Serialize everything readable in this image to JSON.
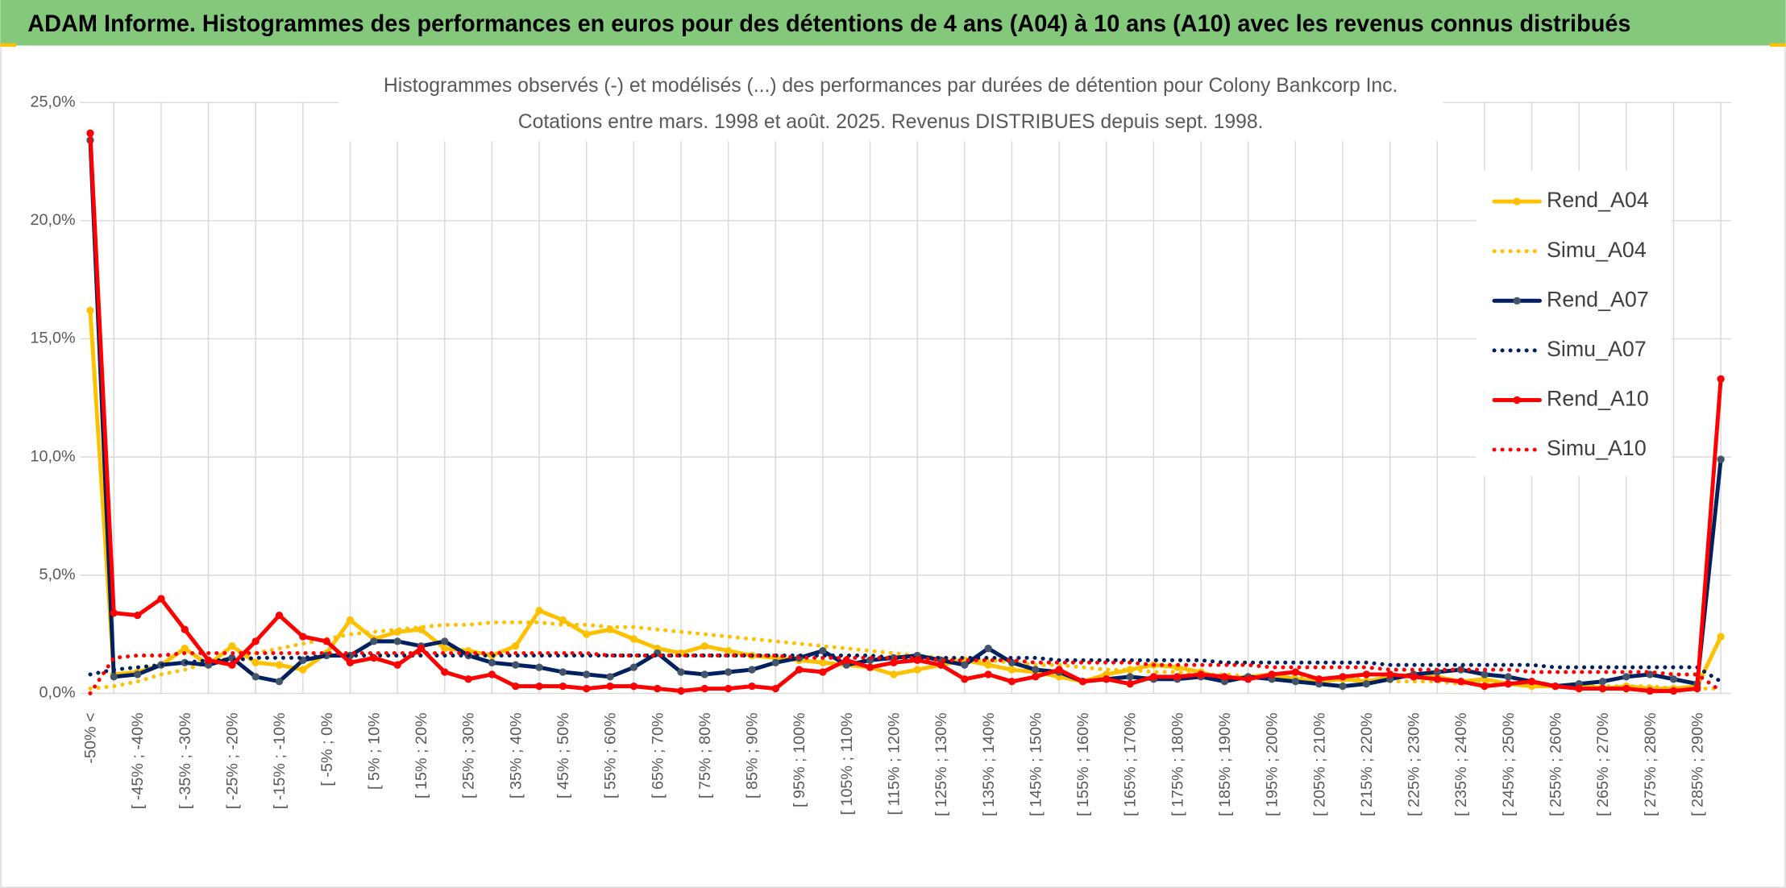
{
  "header": {
    "title": "ADAM Informe. Histogrammes des performances en euros pour des détentions de 4 ans (A04) à 10 ans (A10) avec les revenus connus distribués"
  },
  "chart_data": {
    "type": "line",
    "title": "Histogrammes observés (-) et modélisés (...) des performances par durées de détention pour Colony Bankcorp Inc.",
    "subtitle": "Cotations entre mars. 1998 et août. 2025. Revenus DISTRIBUES depuis sept. 1998.",
    "categories": [
      "-50% <",
      null,
      "[ -45% ; -40%",
      null,
      "[ -35% ; -30%",
      null,
      "[ -25% ; -20%",
      null,
      "[ -15% ; -10%",
      null,
      "[ -5% ; 0%",
      null,
      "[ 5% ; 10%",
      null,
      "[ 15% ; 20%",
      null,
      "[ 25% ; 30%",
      null,
      "[ 35% ; 40%",
      null,
      "[ 45% ; 50%",
      null,
      "[ 55% ; 60%",
      null,
      "[ 65% ; 70%",
      null,
      "[ 75% ; 80%",
      null,
      "[ 85% ; 90%",
      null,
      "[ 95% ; 100%",
      null,
      "[ 105% ; 110%",
      null,
      "[ 115% ; 120%",
      null,
      "[ 125% ; 130%",
      null,
      "[ 135% ; 140%",
      null,
      "[ 145% ; 150%",
      null,
      "[ 155% ; 160%",
      null,
      "[ 165% ; 170%",
      null,
      "[ 175% ; 180%",
      null,
      "[ 185% ; 190%",
      null,
      "[ 195% ; 200%",
      null,
      "[ 205% ; 210%",
      null,
      "[ 215% ; 220%",
      null,
      "[ 225% ; 230%",
      null,
      "[ 235% ; 240%",
      null,
      "[ 245% ; 250%",
      null,
      "[ 255% ; 260%",
      null,
      "[ 265% ; 270%",
      null,
      "[ 275% ; 280%",
      null,
      "[ 285% ; 290%",
      null
    ],
    "series": [
      {
        "name": "Rend_A04",
        "color": "#ffc000",
        "style": "solid",
        "markers": true,
        "values": [
          16.2,
          0.8,
          0.9,
          1.2,
          1.9,
          1.2,
          2.0,
          1.3,
          1.2,
          1.0,
          1.7,
          3.1,
          2.3,
          2.6,
          2.7,
          1.9,
          1.8,
          1.6,
          2.0,
          3.5,
          3.1,
          2.5,
          2.7,
          2.3,
          1.9,
          1.7,
          2.0,
          1.8,
          1.6,
          1.5,
          1.4,
          1.3,
          1.2,
          1.1,
          0.8,
          1.0,
          1.2,
          1.4,
          1.2,
          1.0,
          0.9,
          0.7,
          0.5,
          0.8,
          1.0,
          1.2,
          1.1,
          0.9,
          0.6,
          0.7,
          0.8,
          0.6,
          0.5,
          0.6,
          0.5,
          0.7,
          0.8,
          0.7,
          0.5,
          0.6,
          0.4,
          0.3,
          0.3,
          0.4,
          0.2,
          0.3,
          0.2,
          0.2,
          0.3,
          2.4
        ]
      },
      {
        "name": "Simu_A04",
        "color": "#ffc000",
        "style": "dotted",
        "markers": false,
        "values": [
          0.2,
          0.3,
          0.5,
          0.8,
          1.0,
          1.3,
          1.5,
          1.7,
          1.9,
          2.1,
          2.3,
          2.5,
          2.6,
          2.7,
          2.8,
          2.9,
          2.9,
          3.0,
          3.0,
          3.0,
          2.9,
          2.9,
          2.8,
          2.8,
          2.7,
          2.6,
          2.5,
          2.4,
          2.3,
          2.2,
          2.1,
          2.0,
          1.9,
          1.8,
          1.7,
          1.6,
          1.5,
          1.4,
          1.4,
          1.3,
          1.2,
          1.2,
          1.1,
          1.0,
          1.0,
          0.9,
          0.9,
          0.8,
          0.8,
          0.7,
          0.7,
          0.7,
          0.6,
          0.6,
          0.6,
          0.5,
          0.5,
          0.5,
          0.4,
          0.4,
          0.4,
          0.4,
          0.3,
          0.3,
          0.3,
          0.3,
          0.3,
          0.2,
          0.2,
          0.2
        ]
      },
      {
        "name": "Rend_A07",
        "color": "#002060",
        "marker_color": "#44546a",
        "style": "solid",
        "markers": true,
        "values": [
          23.4,
          0.7,
          0.8,
          1.2,
          1.3,
          1.2,
          1.5,
          0.7,
          0.5,
          1.4,
          1.6,
          1.6,
          2.2,
          2.2,
          2.0,
          2.2,
          1.6,
          1.3,
          1.2,
          1.1,
          0.9,
          0.8,
          0.7,
          1.1,
          1.7,
          0.9,
          0.8,
          0.9,
          1.0,
          1.3,
          1.5,
          1.8,
          1.2,
          1.4,
          1.5,
          1.6,
          1.4,
          1.2,
          1.9,
          1.3,
          1.0,
          0.9,
          0.5,
          0.6,
          0.7,
          0.6,
          0.6,
          0.7,
          0.5,
          0.7,
          0.6,
          0.5,
          0.4,
          0.3,
          0.4,
          0.6,
          0.8,
          0.9,
          1.0,
          0.8,
          0.7,
          0.5,
          0.3,
          0.4,
          0.5,
          0.7,
          0.8,
          0.6,
          0.4,
          9.9
        ]
      },
      {
        "name": "Simu_A07",
        "color": "#002060",
        "style": "dotted",
        "markers": false,
        "values": [
          0.8,
          1.0,
          1.1,
          1.2,
          1.3,
          1.4,
          1.4,
          1.5,
          1.5,
          1.5,
          1.6,
          1.6,
          1.6,
          1.6,
          1.6,
          1.6,
          1.6,
          1.6,
          1.6,
          1.6,
          1.6,
          1.6,
          1.6,
          1.6,
          1.6,
          1.6,
          1.6,
          1.6,
          1.6,
          1.6,
          1.6,
          1.6,
          1.6,
          1.6,
          1.5,
          1.5,
          1.5,
          1.5,
          1.5,
          1.5,
          1.5,
          1.4,
          1.4,
          1.4,
          1.4,
          1.4,
          1.4,
          1.4,
          1.3,
          1.3,
          1.3,
          1.3,
          1.3,
          1.3,
          1.3,
          1.2,
          1.2,
          1.2,
          1.2,
          1.2,
          1.2,
          1.2,
          1.1,
          1.1,
          1.1,
          1.1,
          1.1,
          1.1,
          1.1,
          0.5
        ]
      },
      {
        "name": "Rend_A10",
        "color": "#ff0000",
        "style": "solid",
        "markers": true,
        "values": [
          23.7,
          3.4,
          3.3,
          4.0,
          2.7,
          1.4,
          1.2,
          2.2,
          3.3,
          2.4,
          2.2,
          1.3,
          1.5,
          1.2,
          1.9,
          0.9,
          0.6,
          0.8,
          0.3,
          0.3,
          0.3,
          0.2,
          0.3,
          0.3,
          0.2,
          0.1,
          0.2,
          0.2,
          0.3,
          0.2,
          1.0,
          0.9,
          1.4,
          1.1,
          1.3,
          1.4,
          1.2,
          0.6,
          0.8,
          0.5,
          0.7,
          1.0,
          0.5,
          0.6,
          0.4,
          0.7,
          0.7,
          0.8,
          0.7,
          0.6,
          0.8,
          0.9,
          0.6,
          0.7,
          0.8,
          0.8,
          0.7,
          0.6,
          0.5,
          0.3,
          0.4,
          0.5,
          0.3,
          0.2,
          0.2,
          0.2,
          0.1,
          0.1,
          0.2,
          13.3
        ]
      },
      {
        "name": "Simu_A10",
        "color": "#ff0000",
        "style": "dotted",
        "markers": false,
        "values": [
          0.0,
          1.5,
          1.6,
          1.6,
          1.7,
          1.7,
          1.7,
          1.7,
          1.7,
          1.7,
          1.7,
          1.7,
          1.7,
          1.7,
          1.7,
          1.7,
          1.7,
          1.7,
          1.7,
          1.7,
          1.7,
          1.7,
          1.6,
          1.6,
          1.6,
          1.6,
          1.6,
          1.6,
          1.6,
          1.6,
          1.5,
          1.5,
          1.5,
          1.5,
          1.5,
          1.5,
          1.4,
          1.4,
          1.4,
          1.4,
          1.3,
          1.3,
          1.3,
          1.3,
          1.3,
          1.2,
          1.2,
          1.2,
          1.2,
          1.2,
          1.1,
          1.1,
          1.1,
          1.1,
          1.1,
          1.0,
          1.0,
          1.0,
          1.0,
          1.0,
          1.0,
          0.9,
          0.9,
          0.9,
          0.9,
          0.9,
          0.9,
          0.8,
          0.8,
          0.1
        ]
      }
    ],
    "ylim": [
      0,
      25
    ],
    "yticks": [
      {
        "value": 0,
        "label": "0,0%"
      },
      {
        "value": 5,
        "label": "5,0%"
      },
      {
        "value": 10,
        "label": "10,0%"
      },
      {
        "value": 15,
        "label": "15,0%"
      },
      {
        "value": 20,
        "label": "20,0%"
      },
      {
        "value": 25,
        "label": "25,0%"
      }
    ],
    "grid": true,
    "legend": "right"
  }
}
